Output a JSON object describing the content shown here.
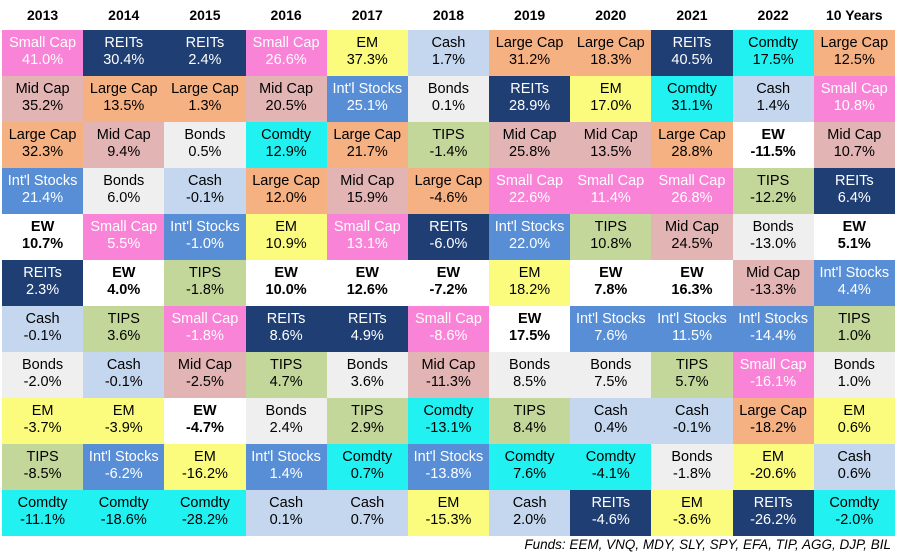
{
  "chart_data": {
    "type": "table",
    "title": "",
    "columns": [
      "2013",
      "2014",
      "2015",
      "2016",
      "2017",
      "2018",
      "2019",
      "2020",
      "2021",
      "2022",
      "10 Years"
    ],
    "rows": [
      [
        [
          "Small Cap",
          "41.0%"
        ],
        [
          "REITs",
          "30.4%"
        ],
        [
          "REITs",
          "2.4%"
        ],
        [
          "Small Cap",
          "26.6%"
        ],
        [
          "EM",
          "37.3%"
        ],
        [
          "Cash",
          "1.7%"
        ],
        [
          "Large Cap",
          "31.2%"
        ],
        [
          "Large Cap",
          "18.3%"
        ],
        [
          "REITs",
          "40.5%"
        ],
        [
          "Comdty",
          "17.5%"
        ],
        [
          "Large Cap",
          "12.5%"
        ]
      ],
      [
        [
          "Mid Cap",
          "35.2%"
        ],
        [
          "Large Cap",
          "13.5%"
        ],
        [
          "Large Cap",
          "1.3%"
        ],
        [
          "Mid Cap",
          "20.5%"
        ],
        [
          "Int'l Stocks",
          "25.1%"
        ],
        [
          "Bonds",
          "0.1%"
        ],
        [
          "REITs",
          "28.9%"
        ],
        [
          "EM",
          "17.0%"
        ],
        [
          "Comdty",
          "31.1%"
        ],
        [
          "Cash",
          "1.4%"
        ],
        [
          "Small Cap",
          "10.8%"
        ]
      ],
      [
        [
          "Large Cap",
          "32.3%"
        ],
        [
          "Mid Cap",
          "9.4%"
        ],
        [
          "Bonds",
          "0.5%"
        ],
        [
          "Comdty",
          "12.9%"
        ],
        [
          "Large Cap",
          "21.7%"
        ],
        [
          "TIPS",
          "-1.4%"
        ],
        [
          "Mid Cap",
          "25.8%"
        ],
        [
          "Mid Cap",
          "13.5%"
        ],
        [
          "Large Cap",
          "28.8%"
        ],
        [
          "EW",
          "-11.5%"
        ],
        [
          "Mid Cap",
          "10.7%"
        ]
      ],
      [
        [
          "Int'l Stocks",
          "21.4%"
        ],
        [
          "Bonds",
          "6.0%"
        ],
        [
          "Cash",
          "-0.1%"
        ],
        [
          "Large Cap",
          "12.0%"
        ],
        [
          "Mid Cap",
          "15.9%"
        ],
        [
          "Large Cap",
          "-4.6%"
        ],
        [
          "Small Cap",
          "22.6%"
        ],
        [
          "Small Cap",
          "11.4%"
        ],
        [
          "Small Cap",
          "26.8%"
        ],
        [
          "TIPS",
          "-12.2%"
        ],
        [
          "REITs",
          "6.4%"
        ]
      ],
      [
        [
          "EW",
          "10.7%"
        ],
        [
          "Small Cap",
          "5.5%"
        ],
        [
          "Int'l Stocks",
          "-1.0%"
        ],
        [
          "EM",
          "10.9%"
        ],
        [
          "Small Cap",
          "13.1%"
        ],
        [
          "REITs",
          "-6.0%"
        ],
        [
          "Int'l Stocks",
          "22.0%"
        ],
        [
          "TIPS",
          "10.8%"
        ],
        [
          "Mid Cap",
          "24.5%"
        ],
        [
          "Bonds",
          "-13.0%"
        ],
        [
          "EW",
          "5.1%"
        ]
      ],
      [
        [
          "REITs",
          "2.3%"
        ],
        [
          "EW",
          "4.0%"
        ],
        [
          "TIPS",
          "-1.8%"
        ],
        [
          "EW",
          "10.0%"
        ],
        [
          "EW",
          "12.6%"
        ],
        [
          "EW",
          "-7.2%"
        ],
        [
          "EM",
          "18.2%"
        ],
        [
          "EW",
          "7.8%"
        ],
        [
          "EW",
          "16.3%"
        ],
        [
          "Mid Cap",
          "-13.3%"
        ],
        [
          "Int'l Stocks",
          "4.4%"
        ]
      ],
      [
        [
          "Cash",
          "-0.1%"
        ],
        [
          "TIPS",
          "3.6%"
        ],
        [
          "Small Cap",
          "-1.8%"
        ],
        [
          "REITs",
          "8.6%"
        ],
        [
          "REITs",
          "4.9%"
        ],
        [
          "Small Cap",
          "-8.6%"
        ],
        [
          "EW",
          "17.5%"
        ],
        [
          "Int'l Stocks",
          "7.6%"
        ],
        [
          "Int'l Stocks",
          "11.5%"
        ],
        [
          "Int'l Stocks",
          "-14.4%"
        ],
        [
          "TIPS",
          "1.0%"
        ]
      ],
      [
        [
          "Bonds",
          "-2.0%"
        ],
        [
          "Cash",
          "-0.1%"
        ],
        [
          "Mid Cap",
          "-2.5%"
        ],
        [
          "TIPS",
          "4.7%"
        ],
        [
          "Bonds",
          "3.6%"
        ],
        [
          "Mid Cap",
          "-11.3%"
        ],
        [
          "Bonds",
          "8.5%"
        ],
        [
          "Bonds",
          "7.5%"
        ],
        [
          "TIPS",
          "5.7%"
        ],
        [
          "Small Cap",
          "-16.1%"
        ],
        [
          "Bonds",
          "1.0%"
        ]
      ],
      [
        [
          "EM",
          "-3.7%"
        ],
        [
          "EM",
          "-3.9%"
        ],
        [
          "EW",
          "-4.7%"
        ],
        [
          "Bonds",
          "2.4%"
        ],
        [
          "TIPS",
          "2.9%"
        ],
        [
          "Comdty",
          "-13.1%"
        ],
        [
          "TIPS",
          "8.4%"
        ],
        [
          "Cash",
          "0.4%"
        ],
        [
          "Cash",
          "-0.1%"
        ],
        [
          "Large Cap",
          "-18.2%"
        ],
        [
          "EM",
          "0.6%"
        ]
      ],
      [
        [
          "TIPS",
          "-8.5%"
        ],
        [
          "Int'l Stocks",
          "-6.2%"
        ],
        [
          "EM",
          "-16.2%"
        ],
        [
          "Int'l Stocks",
          "1.4%"
        ],
        [
          "Comdty",
          "0.7%"
        ],
        [
          "Int'l Stocks",
          "-13.8%"
        ],
        [
          "Comdty",
          "7.6%"
        ],
        [
          "Comdty",
          "-4.1%"
        ],
        [
          "Bonds",
          "-1.8%"
        ],
        [
          "EM",
          "-20.6%"
        ],
        [
          "Cash",
          "0.6%"
        ]
      ],
      [
        [
          "Comdty",
          "-11.1%"
        ],
        [
          "Comdty",
          "-18.6%"
        ],
        [
          "Comdty",
          "-28.2%"
        ],
        [
          "Cash",
          "0.1%"
        ],
        [
          "Cash",
          "0.7%"
        ],
        [
          "EM",
          "-15.3%"
        ],
        [
          "Cash",
          "2.0%"
        ],
        [
          "REITs",
          "-4.6%"
        ],
        [
          "EM",
          "-3.6%"
        ],
        [
          "REITs",
          "-26.2%"
        ],
        [
          "Comdty",
          "-2.0%"
        ]
      ]
    ],
    "asset_colors": {
      "Small Cap": {
        "bg": "#f983d6",
        "fg": "#ffffff"
      },
      "REITs": {
        "bg": "#1f3e73",
        "fg": "#ffffff"
      },
      "EM": {
        "bg": "#fbfb7e",
        "fg": "#000000"
      },
      "Cash": {
        "bg": "#c5d7ee",
        "fg": "#000000"
      },
      "Large Cap": {
        "bg": "#f6b183",
        "fg": "#000000"
      },
      "Comdty": {
        "bg": "#21f1f1",
        "fg": "#000000"
      },
      "Mid Cap": {
        "bg": "#e2b4b4",
        "fg": "#000000"
      },
      "Int'l Stocks": {
        "bg": "#578ed6",
        "fg": "#ffffff"
      },
      "Bonds": {
        "bg": "#efefef",
        "fg": "#000000"
      },
      "TIPS": {
        "bg": "#c4d79b",
        "fg": "#000000"
      },
      "EW": {
        "bg": "#ffffff",
        "fg": "#000000"
      }
    }
  },
  "footer": "Funds: EEM, VNQ, MDY, SLY, SPY, EFA, TIP, AGG, DJP, BIL"
}
